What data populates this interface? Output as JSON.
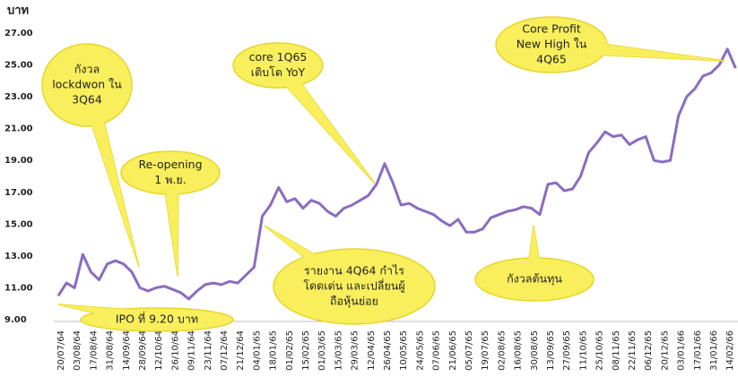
{
  "chart_data": {
    "type": "line",
    "y_label": "บาท",
    "categories": [
      "20/07/64",
      null,
      "03/08/64",
      null,
      "17/08/64",
      null,
      "31/08/64",
      null,
      "14/09/64",
      null,
      "28/09/64",
      null,
      "12/10/64",
      null,
      "26/10/64",
      null,
      "09/11/64",
      null,
      "23/11/64",
      null,
      "07/12/64",
      null,
      "21/12/64",
      null,
      "04/01/65",
      null,
      "18/01/65",
      null,
      "01/02/65",
      null,
      "15/02/65",
      null,
      "01/03/65",
      null,
      "15/03/65",
      null,
      "29/03/65",
      null,
      "12/04/65",
      null,
      "26/04/65",
      null,
      "10/05/65",
      null,
      "24/05/65",
      null,
      "07/06/65",
      null,
      "21/06/65",
      null,
      "05/07/65",
      null,
      "19/07/65",
      null,
      "02/08/65",
      null,
      "16/08/65",
      null,
      "30/08/65",
      null,
      "13/09/65",
      null,
      "27/09/65",
      null,
      "11/10/65",
      null,
      "25/10/65",
      null,
      "08/11/65",
      null,
      "22/11/65",
      null,
      "06/12/65",
      null,
      "20/12/65",
      null,
      "03/01/66",
      null,
      "17/01/66",
      null,
      "31/01/66",
      null,
      "14/02/66",
      null
    ],
    "values": [
      10.5,
      11.3,
      11.0,
      13.1,
      12.0,
      11.5,
      12.5,
      12.7,
      12.5,
      12.0,
      11.0,
      10.8,
      11.0,
      11.1,
      10.9,
      10.7,
      10.3,
      10.8,
      11.2,
      11.3,
      11.2,
      11.4,
      11.3,
      11.8,
      12.3,
      15.5,
      16.2,
      17.3,
      16.4,
      16.6,
      16.0,
      16.5,
      16.3,
      15.8,
      15.5,
      16.0,
      16.2,
      16.5,
      16.8,
      17.5,
      18.8,
      17.6,
      16.2,
      16.3,
      16.0,
      15.8,
      15.6,
      15.2,
      14.9,
      15.3,
      14.5,
      14.5,
      14.7,
      15.4,
      15.6,
      15.8,
      15.9,
      16.1,
      16.0,
      15.6,
      17.5,
      17.6,
      17.1,
      17.2,
      18.0,
      19.5,
      20.1,
      20.8,
      20.5,
      20.6,
      20.0,
      20.3,
      20.5,
      19.0,
      18.9,
      19.0,
      21.8,
      23.0,
      23.5,
      24.3,
      24.5,
      25.0,
      26.0,
      24.8
    ],
    "color": "#8a6cc0",
    "ylim": [
      9,
      27
    ],
    "yticks": [
      {
        "value": 9,
        "label": "9.00"
      },
      {
        "value": 11,
        "label": "11.00"
      },
      {
        "value": 13,
        "label": "13.00"
      },
      {
        "value": 15,
        "label": "15.00"
      },
      {
        "value": 17,
        "label": "17.00"
      },
      {
        "value": 19,
        "label": "19.00"
      },
      {
        "value": 21,
        "label": "21.00"
      },
      {
        "value": 23,
        "label": "23.00"
      },
      {
        "value": 25,
        "label": "25.00"
      },
      {
        "value": 27,
        "label": "27.00"
      }
    ],
    "annotations": [
      {
        "lines": [
          "กังวล",
          "lockdwon ใน",
          "3Q64"
        ]
      },
      {
        "lines": [
          "Re-opening",
          "1 พ.ย."
        ]
      },
      {
        "lines": [
          "core 1Q65",
          "เติบโต YoY"
        ]
      },
      {
        "lines": [
          "Core Profit",
          "New High ใน",
          "4Q65"
        ]
      },
      {
        "lines": [
          "IPO ที่ 9.20 บาท"
        ]
      },
      {
        "lines": [
          "รายงาน 4Q64 กำไร",
          "โดดเด่น และเปลี่ยนผู้",
          "ถือหุ้นย่อย"
        ]
      },
      {
        "lines": [
          "กังวลต้นทุน"
        ]
      }
    ]
  }
}
